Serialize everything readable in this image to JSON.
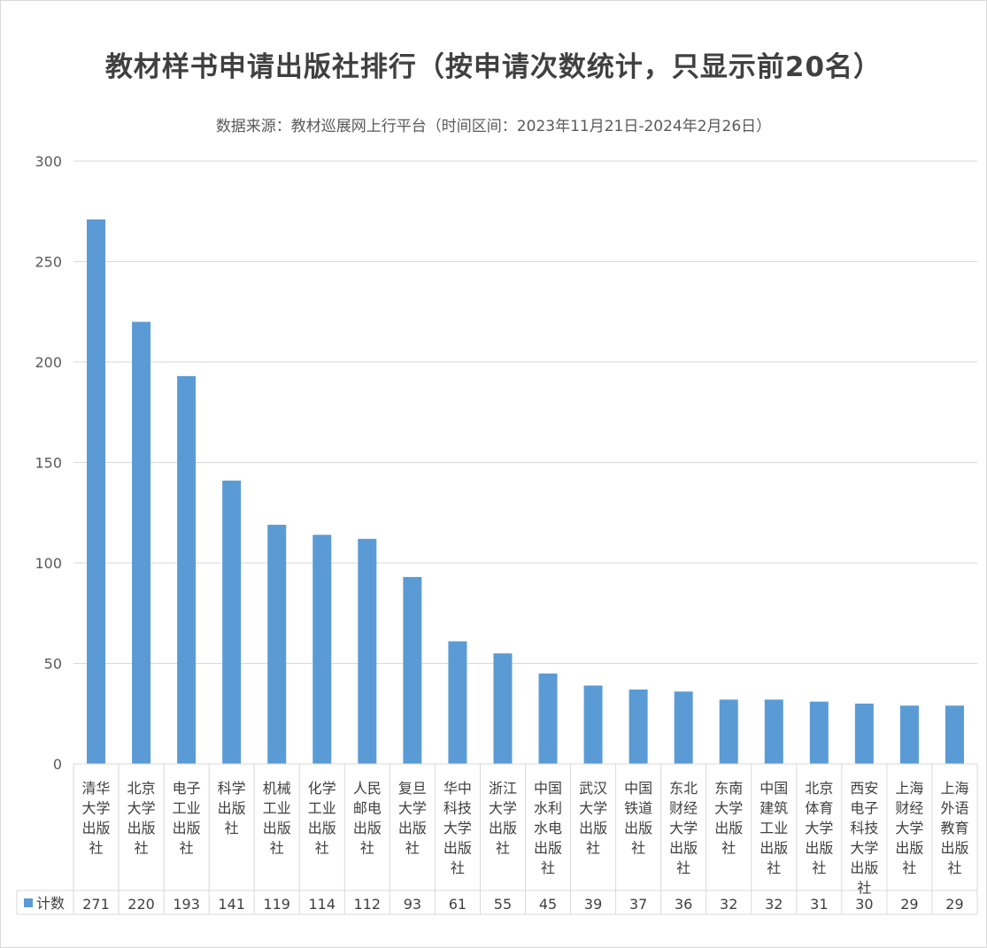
{
  "chart_data": {
    "type": "bar",
    "title": "教材样书申请出版社排行（按申请次数统计，只显示前20名）",
    "subtitle": "数据来源：教材巡展网上行平台（时间区间：2023年11月21日-2024年2月26日）",
    "xlabel": "",
    "ylabel": "",
    "ylim": [
      0,
      300
    ],
    "yticks": [
      0,
      50,
      100,
      150,
      200,
      250,
      300
    ],
    "grid": true,
    "legend": "bottom-left data table",
    "categories": [
      "清华大学出版社",
      "北京大学出版社",
      "电子工业出版社",
      "科学出版社",
      "机械工业出版社",
      "化学工业出版社",
      "人民邮电出版社",
      "复旦大学出版社",
      "华中科技大学出版社",
      "浙江大学出版社",
      "中国水利水电出版社",
      "武汉大学出版社",
      "中国铁道出版社",
      "东北财经大学出版社",
      "东南大学出版社",
      "中国建筑工业出版社",
      "北京体育大学出版社",
      "西安电子科技大学出版社",
      "上海财经大学出版社",
      "上海外语教育出版社"
    ],
    "category_lines": [
      [
        "清华",
        "大学",
        "出版",
        "社"
      ],
      [
        "北京",
        "大学",
        "出版",
        "社"
      ],
      [
        "电子",
        "工业",
        "出版",
        "社"
      ],
      [
        "科学",
        "出版",
        "社"
      ],
      [
        "机械",
        "工业",
        "出版",
        "社"
      ],
      [
        "化学",
        "工业",
        "出版",
        "社"
      ],
      [
        "人民",
        "邮电",
        "出版",
        "社"
      ],
      [
        "复旦",
        "大学",
        "出版",
        "社"
      ],
      [
        "华中",
        "科技",
        "大学",
        "出版",
        "社"
      ],
      [
        "浙江",
        "大学",
        "出版",
        "社"
      ],
      [
        "中国",
        "水利",
        "水电",
        "出版",
        "社"
      ],
      [
        "武汉",
        "大学",
        "出版",
        "社"
      ],
      [
        "中国",
        "铁道",
        "出版",
        "社"
      ],
      [
        "东北",
        "财经",
        "大学",
        "出版",
        "社"
      ],
      [
        "东南",
        "大学",
        "出版",
        "社"
      ],
      [
        "中国",
        "建筑",
        "工业",
        "出版",
        "社"
      ],
      [
        "北京",
        "体育",
        "大学",
        "出版",
        "社"
      ],
      [
        "西安",
        "电子",
        "科技",
        "大学",
        "出版",
        "社"
      ],
      [
        "上海",
        "财经",
        "大学",
        "出版",
        "社"
      ],
      [
        "上海",
        "外语",
        "教育",
        "出版",
        "社"
      ]
    ],
    "series": [
      {
        "name": "计数",
        "color": "#5B9BD5",
        "values": [
          271,
          220,
          193,
          141,
          119,
          114,
          112,
          93,
          61,
          55,
          45,
          39,
          37,
          36,
          32,
          32,
          31,
          30,
          29,
          29
        ]
      }
    ]
  }
}
